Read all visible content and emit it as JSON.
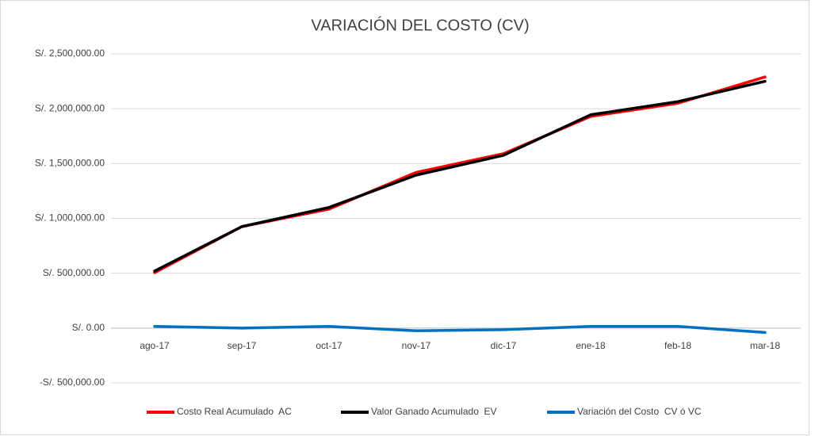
{
  "chart_data": {
    "type": "line",
    "title": "VARIACIÓN DEL COSTO (CV)",
    "categories": [
      "ago-17",
      "sep-17",
      "oct-17",
      "nov-17",
      "dic-17",
      "ene-18",
      "feb-18",
      "mar-18"
    ],
    "series": [
      {
        "name": "Costo Real Acumulado  AC",
        "color": "#ff0000",
        "values": [
          505000,
          925000,
          1085000,
          1420000,
          1590000,
          1930000,
          2050000,
          2290000
        ]
      },
      {
        "name": "Valor Ganado Acumulado  EV",
        "color": "#000000",
        "values": [
          520000,
          925000,
          1100000,
          1395000,
          1575000,
          1945000,
          2065000,
          2250000
        ]
      },
      {
        "name": "Variación del Costo  CV ó VC",
        "color": "#0070c0",
        "values": [
          15000,
          0,
          15000,
          -25000,
          -15000,
          15000,
          15000,
          -40000
        ]
      }
    ],
    "ylim": [
      -500000,
      2500000
    ],
    "yticks": [
      {
        "value": -500000,
        "label": "-S/. 500,000.00"
      },
      {
        "value": 0,
        "label": "S/. 0.00"
      },
      {
        "value": 500000,
        "label": "S/. 500,000.00"
      },
      {
        "value": 1000000,
        "label": "S/. 1,000,000.00"
      },
      {
        "value": 1500000,
        "label": "S/. 1,500,000.00"
      },
      {
        "value": 2000000,
        "label": "S/. 2,000,000.00"
      },
      {
        "value": 2500000,
        "label": "S/. 2,500,000.00"
      }
    ],
    "grid": true,
    "legend": "bottom"
  }
}
